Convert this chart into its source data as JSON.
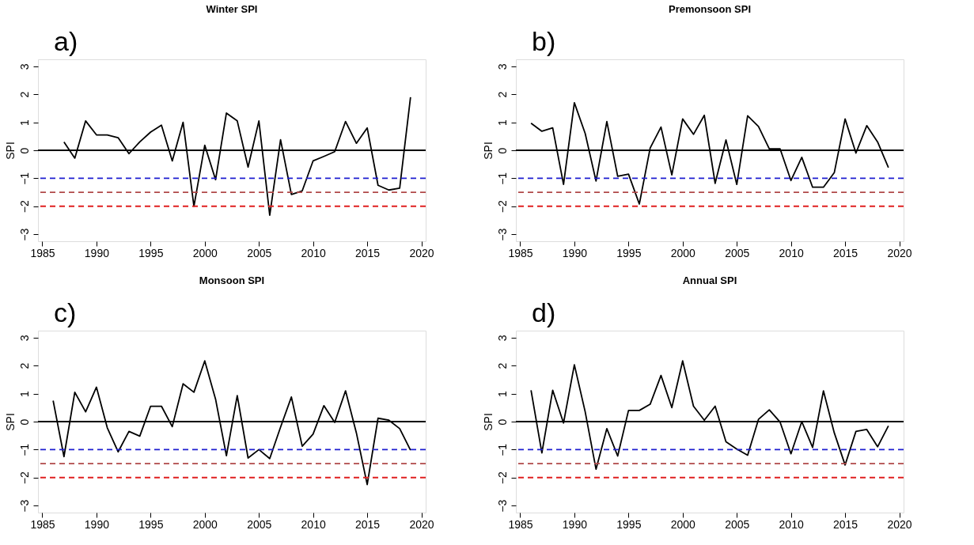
{
  "chart_data": [
    {
      "type": "line",
      "title": "Winter SPI",
      "ylabel": "SPI",
      "annotations": [
        "a)"
      ],
      "grid": false,
      "marker": "none",
      "line_style": "solid",
      "x": [
        1987,
        1988,
        1989,
        1990,
        1991,
        1992,
        1993,
        1994,
        1995,
        1996,
        1997,
        1998,
        1999,
        2000,
        2001,
        2002,
        2003,
        2004,
        2005,
        2006,
        2007,
        2008,
        2009,
        2010,
        2011,
        2012,
        2013,
        2014,
        2015,
        2016,
        2017,
        2018,
        2019
      ],
      "series": [
        {
          "color": "#000000",
          "values": [
            0.3,
            -0.28,
            1.05,
            0.55,
            0.55,
            0.45,
            -0.12,
            0.3,
            0.65,
            0.9,
            -0.38,
            1.0,
            -2.0,
            0.18,
            -1.05,
            1.33,
            1.05,
            -0.6,
            1.05,
            -2.32,
            0.38,
            -1.58,
            -1.45,
            -0.38,
            -0.22,
            -0.05,
            1.03,
            0.25,
            0.8,
            -1.25,
            -1.42,
            -1.35,
            1.9
          ]
        }
      ],
      "xlim": [
        1984.6,
        2020.4
      ],
      "xticks": [
        1985,
        1990,
        1995,
        2000,
        2005,
        2010,
        2015,
        2020
      ],
      "ylim": [
        -3.25,
        3.25
      ],
      "yticks": [
        -3,
        -2,
        -1,
        0,
        1,
        2,
        3
      ],
      "ref_lines": [
        {
          "axis": "y",
          "value": 0,
          "color": "#000000",
          "line_style": "solid"
        },
        {
          "axis": "y",
          "value": -1,
          "color": "#1f1fd0",
          "line_style": "dashed"
        },
        {
          "axis": "y",
          "value": -1.5,
          "color": "#b04848",
          "line_style": "dashed"
        },
        {
          "axis": "y",
          "value": -2,
          "color": "#e02020",
          "line_style": "dashed"
        }
      ]
    },
    {
      "type": "line",
      "title": "Premonsoon SPI",
      "ylabel": "SPI",
      "annotations": [
        "b)"
      ],
      "grid": false,
      "marker": "none",
      "line_style": "solid",
      "x": [
        1986,
        1987,
        1988,
        1989,
        1990,
        1991,
        1992,
        1993,
        1994,
        1995,
        1996,
        1997,
        1998,
        1999,
        2000,
        2001,
        2002,
        2003,
        2004,
        2005,
        2006,
        2007,
        2008,
        2009,
        2010,
        2011,
        2012,
        2013,
        2014,
        2015,
        2016,
        2017,
        2018,
        2019
      ],
      "series": [
        {
          "color": "#000000",
          "values": [
            0.97,
            0.68,
            0.8,
            -1.22,
            1.7,
            0.6,
            -1.1,
            1.03,
            -0.93,
            -0.85,
            -1.92,
            0.08,
            0.83,
            -0.88,
            1.12,
            0.57,
            1.25,
            -1.18,
            0.37,
            -1.22,
            1.23,
            0.85,
            0.05,
            0.05,
            -1.08,
            -0.25,
            -1.32,
            -1.32,
            -0.8,
            1.12,
            -0.1,
            0.88,
            0.3,
            -0.62
          ]
        }
      ],
      "xlim": [
        1984.6,
        2020.4
      ],
      "xticks": [
        1985,
        1990,
        1995,
        2000,
        2005,
        2010,
        2015,
        2020
      ],
      "ylim": [
        -3.25,
        3.25
      ],
      "yticks": [
        -3,
        -2,
        -1,
        0,
        1,
        2,
        3
      ],
      "ref_lines": [
        {
          "axis": "y",
          "value": 0,
          "color": "#000000",
          "line_style": "solid"
        },
        {
          "axis": "y",
          "value": -1,
          "color": "#1f1fd0",
          "line_style": "dashed"
        },
        {
          "axis": "y",
          "value": -1.5,
          "color": "#b04848",
          "line_style": "dashed"
        },
        {
          "axis": "y",
          "value": -2,
          "color": "#e02020",
          "line_style": "dashed"
        }
      ]
    },
    {
      "type": "line",
      "title": "Monsoon SPI",
      "ylabel": "SPI",
      "annotations": [
        "c)"
      ],
      "grid": false,
      "marker": "none",
      "line_style": "solid",
      "x": [
        1986,
        1987,
        1988,
        1989,
        1990,
        1991,
        1992,
        1993,
        1994,
        1995,
        1996,
        1997,
        1998,
        1999,
        2000,
        2001,
        2002,
        2003,
        2004,
        2005,
        2006,
        2007,
        2008,
        2009,
        2010,
        2011,
        2012,
        2013,
        2014,
        2015,
        2016,
        2017,
        2018,
        2019
      ],
      "series": [
        {
          "color": "#000000",
          "values": [
            0.75,
            -1.25,
            1.05,
            0.35,
            1.23,
            -0.22,
            -1.08,
            -0.35,
            -0.52,
            0.55,
            0.55,
            -0.18,
            1.35,
            1.05,
            2.17,
            0.8,
            -1.22,
            0.93,
            -1.3,
            -1.0,
            -1.32,
            -0.2,
            0.88,
            -0.88,
            -0.45,
            0.57,
            -0.03,
            1.1,
            -0.4,
            -2.25,
            0.12,
            0.05,
            -0.25,
            -1.02
          ]
        }
      ],
      "xlim": [
        1984.6,
        2020.4
      ],
      "xticks": [
        1985,
        1990,
        1995,
        2000,
        2005,
        2010,
        2015,
        2020
      ],
      "ylim": [
        -3.25,
        3.25
      ],
      "yticks": [
        -3,
        -2,
        -1,
        0,
        1,
        2,
        3
      ],
      "ref_lines": [
        {
          "axis": "y",
          "value": 0,
          "color": "#000000",
          "line_style": "solid"
        },
        {
          "axis": "y",
          "value": -1,
          "color": "#1f1fd0",
          "line_style": "dashed"
        },
        {
          "axis": "y",
          "value": -1.5,
          "color": "#b04848",
          "line_style": "dashed"
        },
        {
          "axis": "y",
          "value": -2,
          "color": "#e02020",
          "line_style": "dashed"
        }
      ]
    },
    {
      "type": "line",
      "title": "Annual SPI",
      "ylabel": "SPI",
      "annotations": [
        "d)"
      ],
      "grid": false,
      "marker": "none",
      "line_style": "solid",
      "x": [
        1986,
        1987,
        1988,
        1989,
        1990,
        1991,
        1992,
        1993,
        1994,
        1995,
        1996,
        1997,
        1998,
        1999,
        2000,
        2001,
        2002,
        2003,
        2004,
        2005,
        2006,
        2007,
        2008,
        2009,
        2010,
        2011,
        2012,
        2013,
        2014,
        2015,
        2016,
        2017,
        2018,
        2019
      ],
      "series": [
        {
          "color": "#000000",
          "values": [
            1.12,
            -1.12,
            1.12,
            -0.05,
            2.03,
            0.35,
            -1.7,
            -0.25,
            -1.23,
            0.4,
            0.4,
            0.62,
            1.65,
            0.5,
            2.17,
            0.55,
            0.05,
            0.55,
            -0.72,
            -0.98,
            -1.2,
            0.08,
            0.42,
            -0.02,
            -1.15,
            0.0,
            -0.92,
            1.1,
            -0.4,
            -1.55,
            -0.35,
            -0.28,
            -0.9,
            -0.15
          ]
        }
      ],
      "xlim": [
        1984.6,
        2020.4
      ],
      "xticks": [
        1985,
        1990,
        1995,
        2000,
        2005,
        2010,
        2015,
        2020
      ],
      "ylim": [
        -3.25,
        3.25
      ],
      "yticks": [
        -3,
        -2,
        -1,
        0,
        1,
        2,
        3
      ],
      "ref_lines": [
        {
          "axis": "y",
          "value": 0,
          "color": "#000000",
          "line_style": "solid"
        },
        {
          "axis": "y",
          "value": -1,
          "color": "#1f1fd0",
          "line_style": "dashed"
        },
        {
          "axis": "y",
          "value": -1.5,
          "color": "#b04848",
          "line_style": "dashed"
        },
        {
          "axis": "y",
          "value": -2,
          "color": "#e02020",
          "line_style": "dashed"
        }
      ]
    }
  ]
}
